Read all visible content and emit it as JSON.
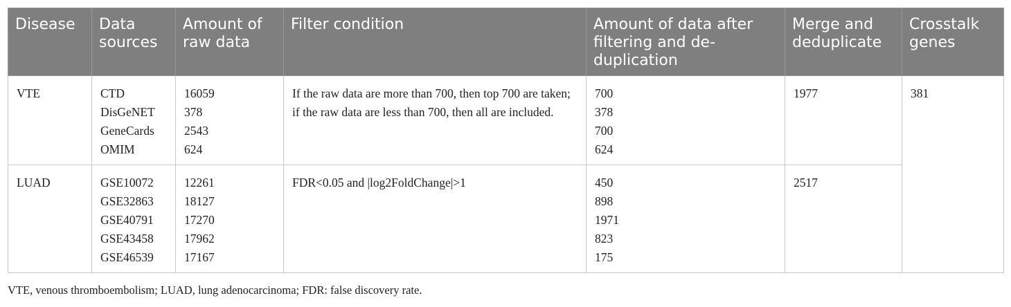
{
  "table": {
    "headers": [
      "Disease",
      "Data sources",
      "Amount of raw data",
      "Filter condition",
      "Amount of data after filtering and de-duplication",
      "Merge and deduplicate",
      "Crosstalk genes"
    ],
    "rows": [
      {
        "disease": "VTE",
        "sources": [
          "CTD",
          "DisGeNET",
          "GeneCards",
          "OMIM"
        ],
        "raw": [
          "16059",
          "378",
          "2543",
          "624"
        ],
        "filter": "If the raw data are more than 700, then top 700 are taken; if the raw data are less than 700, then all are included.",
        "after": [
          "700",
          "378",
          "700",
          "624"
        ],
        "merge": "1977"
      },
      {
        "disease": "LUAD",
        "sources": [
          "GSE10072",
          "GSE32863",
          "GSE40791",
          "GSE43458",
          "GSE46539"
        ],
        "raw": [
          "12261",
          "18127",
          "17270",
          "17962",
          "17167"
        ],
        "filter": "FDR<0.05 and |log2FoldChange|>1",
        "after": [
          "450",
          "898",
          "1971",
          "823",
          "175"
        ],
        "merge": "2517"
      }
    ],
    "crosstalk": "381"
  },
  "footnote": "VTE, venous thromboembolism; LUAD, lung adenocarcinoma; FDR: false discovery rate."
}
